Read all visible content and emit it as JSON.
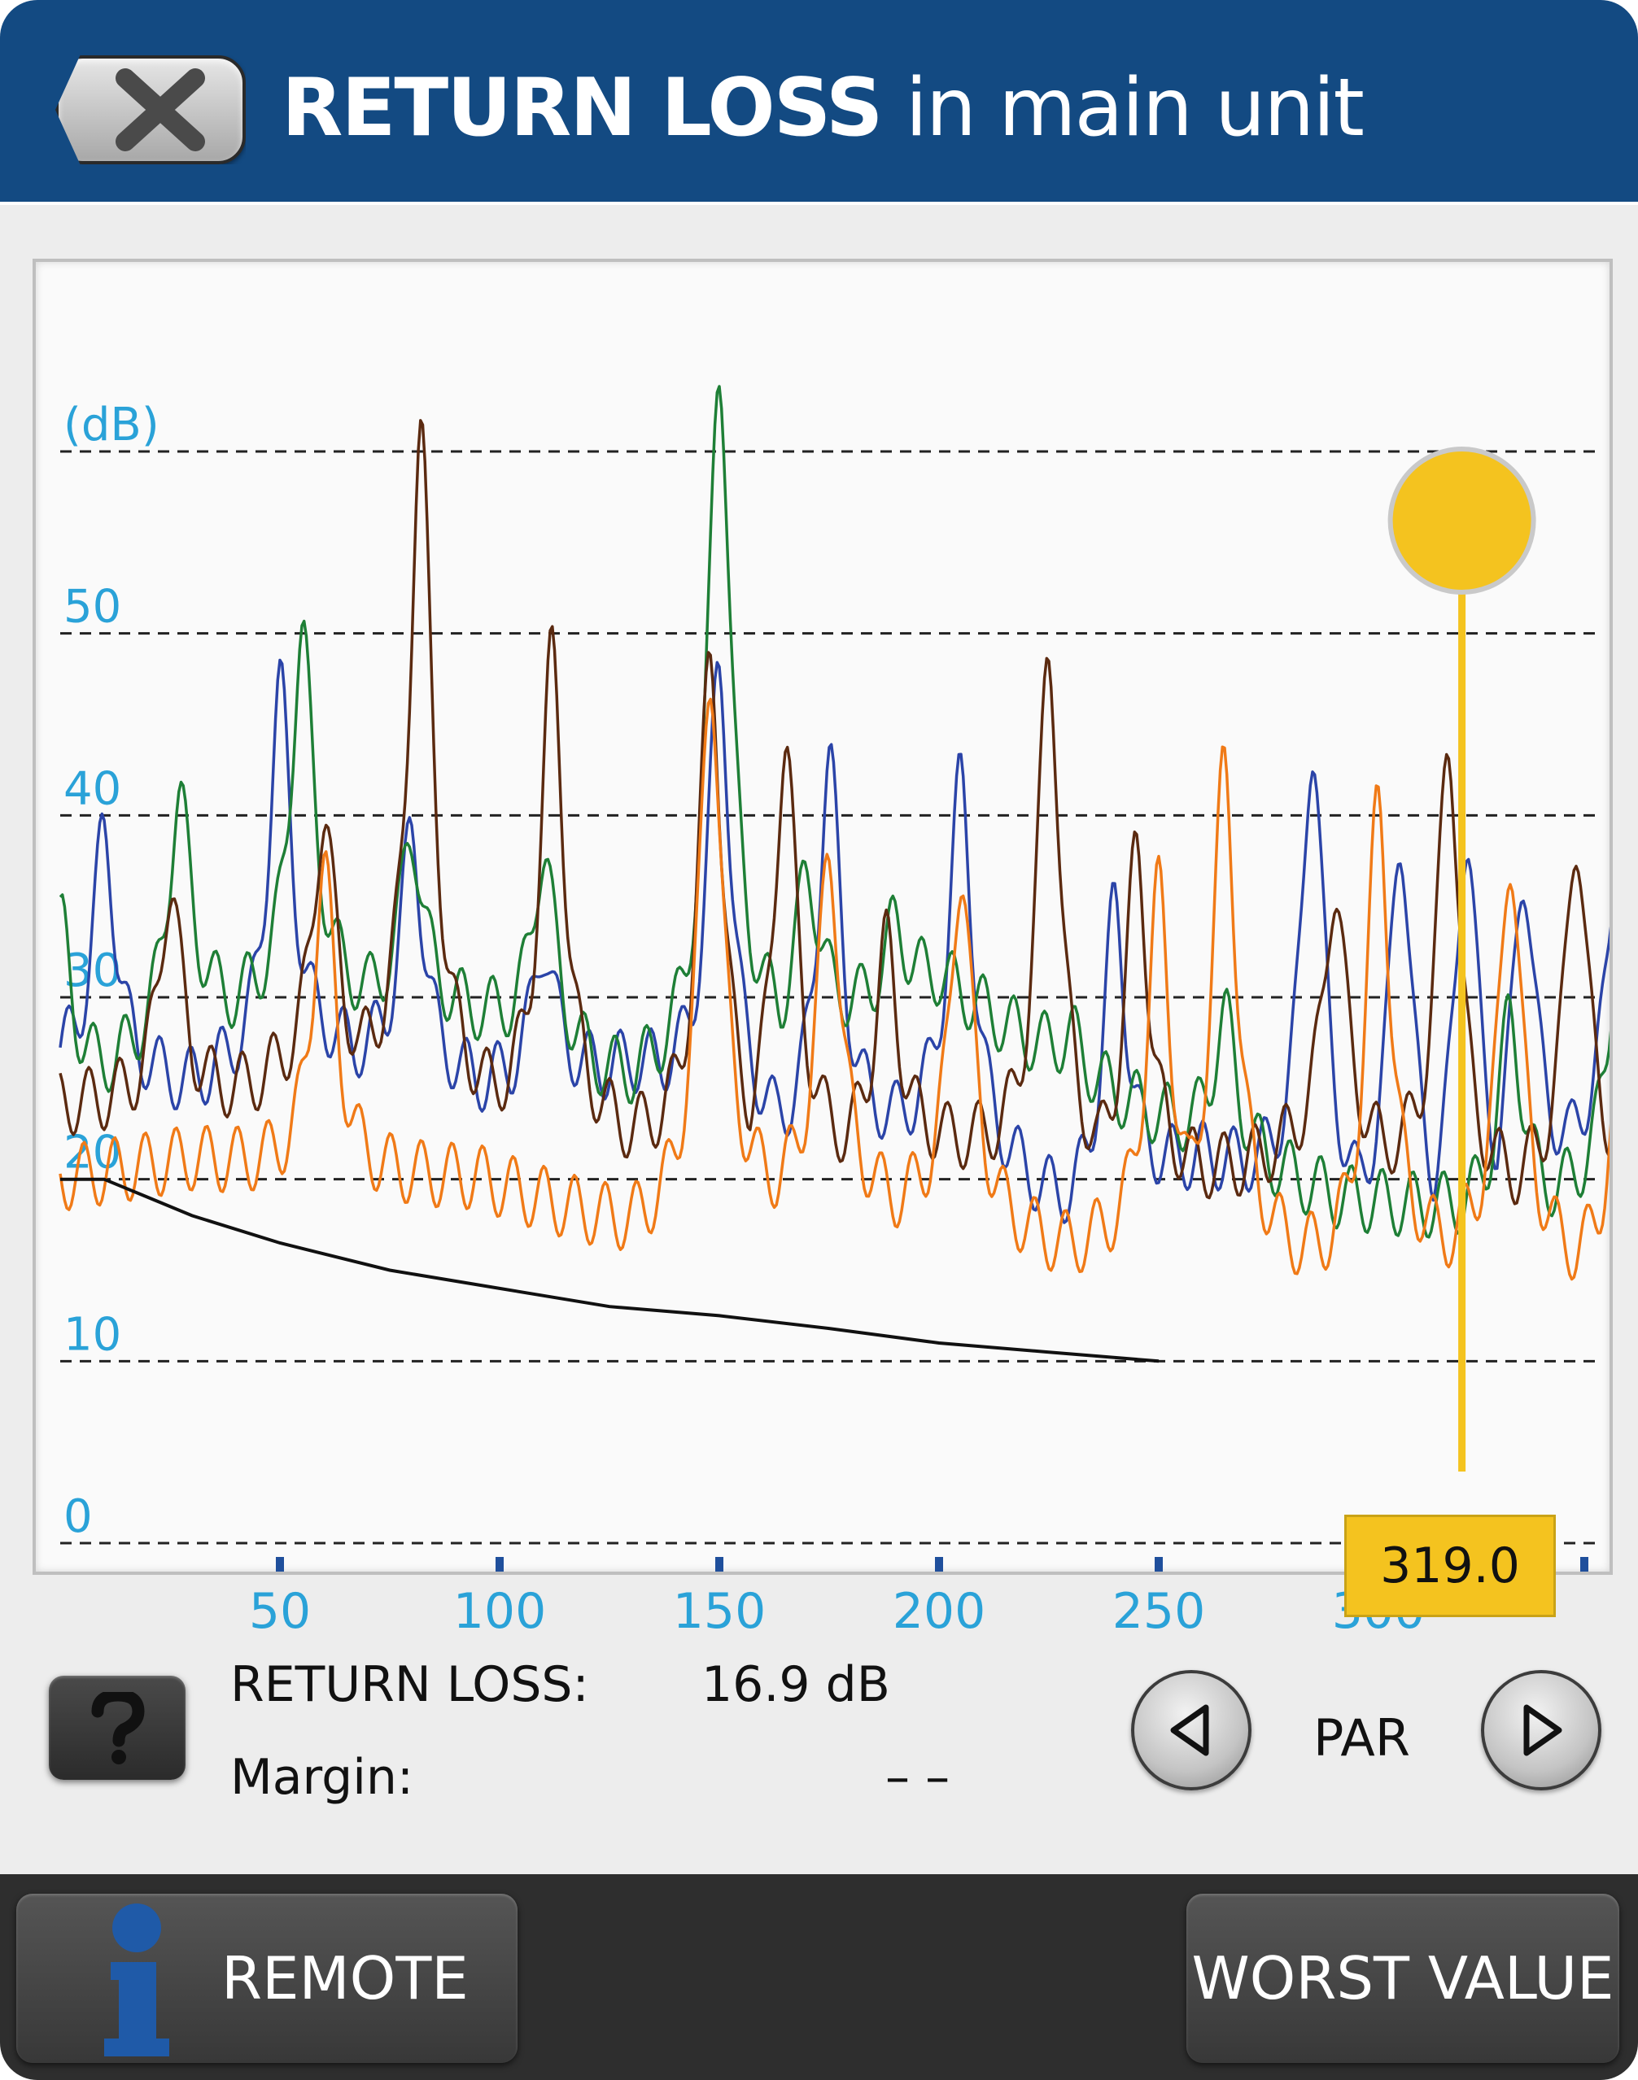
{
  "header": {
    "title_bold": "RETURN LOSS",
    "title_rest": " in main unit",
    "close_icon": "close-x-icon"
  },
  "chart_data": {
    "type": "line",
    "ylabel": "(dB)",
    "y_ticks": [
      "0",
      "10",
      "20",
      "30",
      "40",
      "50"
    ],
    "x_ticks": [
      "50",
      "100",
      "150",
      "200",
      "250",
      "300"
    ],
    "xlim": [
      0,
      350
    ],
    "ylim": [
      0,
      60
    ],
    "grid": "dashed horizontal",
    "cursor": {
      "x": 319.0,
      "label": "319.0",
      "color": "#f4c31f"
    },
    "limit_line": {
      "color": "#111111",
      "x": [
        0,
        10,
        20,
        30,
        50,
        75,
        100,
        125,
        150,
        175,
        200,
        225,
        250
      ],
      "y": [
        20,
        20,
        19,
        18,
        16.5,
        15,
        14,
        13,
        12.5,
        11.8,
        11,
        10.5,
        10
      ]
    },
    "series": [
      {
        "color": "#2b44a8",
        "peaks": [
          [
            10,
            39
          ],
          [
            50,
            47
          ],
          [
            80,
            39
          ],
          [
            110,
            33
          ],
          [
            150,
            48
          ],
          [
            175,
            43
          ],
          [
            205,
            42
          ],
          [
            240,
            35
          ],
          [
            285,
            44
          ],
          [
            305,
            39
          ],
          [
            320,
            39
          ],
          [
            333,
            37
          ],
          [
            356,
            46
          ]
        ],
        "baseline": [
          [
            0,
            26
          ],
          [
            30,
            25
          ],
          [
            60,
            27
          ],
          [
            95,
            25
          ],
          [
            130,
            26
          ],
          [
            165,
            22
          ],
          [
            200,
            23
          ],
          [
            230,
            18
          ],
          [
            260,
            21
          ],
          [
            290,
            18
          ],
          [
            320,
            17
          ],
          [
            350,
            22
          ]
        ]
      },
      {
        "color": "#1e7f36",
        "peaks": [
          [
            0,
            34
          ],
          [
            27,
            41
          ],
          [
            55,
            50
          ],
          [
            80,
            39
          ],
          [
            110,
            38
          ],
          [
            150,
            65
          ],
          [
            170,
            37
          ],
          [
            190,
            34
          ],
          [
            230,
            28
          ],
          [
            265,
            29
          ],
          [
            330,
            29
          ],
          [
            356,
            40
          ]
        ],
        "baseline": [
          [
            0,
            24
          ],
          [
            30,
            29
          ],
          [
            60,
            30
          ],
          [
            95,
            29
          ],
          [
            130,
            25
          ],
          [
            165,
            28
          ],
          [
            200,
            31
          ],
          [
            230,
            26
          ],
          [
            260,
            22
          ],
          [
            290,
            19
          ],
          [
            320,
            18
          ],
          [
            350,
            19
          ]
        ]
      },
      {
        "color": "#5b2a10",
        "peaks": [
          [
            25,
            36
          ],
          [
            60,
            40
          ],
          [
            82,
            61
          ],
          [
            112,
            49
          ],
          [
            148,
            49
          ],
          [
            165,
            44
          ],
          [
            188,
            33
          ],
          [
            225,
            49
          ],
          [
            245,
            38
          ],
          [
            290,
            36
          ],
          [
            316,
            44
          ],
          [
            345,
            39
          ]
        ],
        "baseline": [
          [
            0,
            24
          ],
          [
            30,
            24
          ],
          [
            60,
            26
          ],
          [
            95,
            24
          ],
          [
            130,
            22
          ],
          [
            165,
            21
          ],
          [
            200,
            22
          ],
          [
            230,
            20
          ],
          [
            260,
            20
          ],
          [
            290,
            22
          ],
          [
            320,
            19
          ],
          [
            350,
            20
          ]
        ]
      },
      {
        "color": "#f07a17",
        "peaks": [
          [
            60,
            37
          ],
          [
            148,
            48
          ],
          [
            175,
            38
          ],
          [
            205,
            37
          ],
          [
            250,
            36
          ],
          [
            265,
            43
          ],
          [
            300,
            41
          ],
          [
            330,
            38
          ],
          [
            355,
            26
          ]
        ],
        "baseline": [
          [
            0,
            20
          ],
          [
            30,
            21
          ],
          [
            60,
            20
          ],
          [
            95,
            20
          ],
          [
            130,
            17
          ],
          [
            165,
            19
          ],
          [
            200,
            18
          ],
          [
            230,
            16
          ],
          [
            260,
            17
          ],
          [
            290,
            15
          ],
          [
            320,
            16
          ],
          [
            350,
            15
          ]
        ]
      }
    ]
  },
  "measurements": {
    "return_loss_label": "RETURN LOSS:",
    "return_loss_value": "16.9 dB",
    "margin_label": "Margin:",
    "margin_value": "– –"
  },
  "pair_nav": {
    "label": "PAR",
    "prev_icon": "triangle-left-icon",
    "next_icon": "triangle-right-icon"
  },
  "help": {
    "label": "?"
  },
  "footer": {
    "remote_label": "REMOTE",
    "worst_value_label": "WORST VALUE",
    "info_icon": "info-icon"
  }
}
